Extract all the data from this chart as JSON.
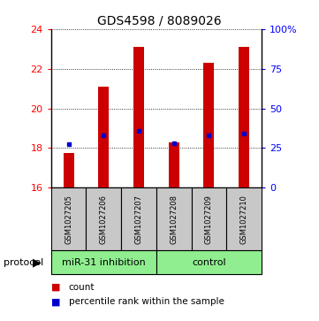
{
  "title": "GDS4598 / 8089026",
  "samples": [
    "GSM1027205",
    "GSM1027206",
    "GSM1027207",
    "GSM1027208",
    "GSM1027209",
    "GSM1027210"
  ],
  "bar_bottom": 16,
  "bar_tops": [
    17.75,
    21.1,
    23.1,
    18.3,
    22.3,
    23.1
  ],
  "percentile_y": [
    18.2,
    18.65,
    18.85,
    18.25,
    18.65,
    18.75
  ],
  "ylim": [
    16,
    24
  ],
  "yticks_left": [
    16,
    18,
    20,
    22,
    24
  ],
  "yticks_right": [
    0,
    25,
    50,
    75,
    100
  ],
  "bar_color": "#cc0000",
  "dot_color": "#0000cc",
  "group_labels": [
    "miR-31 inhibition",
    "control"
  ],
  "group_color": "#90ee90",
  "group_bg_color": "#c8c8c8",
  "protocol_label": "protocol",
  "legend_count": "count",
  "legend_pct": "percentile rank within the sample",
  "title_fontsize": 10,
  "tick_fontsize": 8,
  "sample_fontsize": 6,
  "group_fontsize": 8,
  "legend_fontsize": 7.5,
  "bar_width": 0.3
}
